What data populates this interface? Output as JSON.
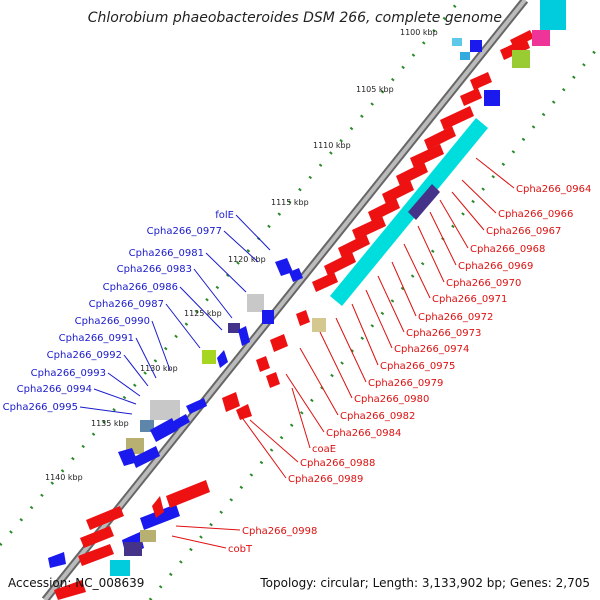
{
  "title": "Chlorobium phaeobacteroides DSM 266, complete genome",
  "footer": {
    "accession_label": "Accession:",
    "accession": "NC_008639",
    "topology_text": "Topology: circular; Length: 3,133,902 bp; Genes: 2,705"
  },
  "scale_ticks": [
    "1100 kbp",
    "1105 kbp",
    "1110 kbp",
    "1115 kbp",
    "1120 kbp",
    "1125 kbp",
    "1130 kbp",
    "1135 kbp",
    "1140 kbp"
  ],
  "genes_left": [
    "folE",
    "Cpha266_0977",
    "Cpha266_0981",
    "Cpha266_0983",
    "Cpha266_0986",
    "Cpha266_0987",
    "Cpha266_0990",
    "Cpha266_0991",
    "Cpha266_0992",
    "Cpha266_0993",
    "Cpha266_0994",
    "Cpha266_0995"
  ],
  "genes_right": [
    "Cpha266_0964",
    "Cpha266_0966",
    "Cpha266_0967",
    "Cpha266_0968",
    "Cpha266_0969",
    "Cpha266_0970",
    "Cpha266_0971",
    "Cpha266_0972",
    "Cpha266_0973",
    "Cpha266_0974",
    "Cpha266_0975",
    "Cpha266_0979",
    "Cpha266_0980",
    "Cpha266_0982",
    "Cpha266_0984",
    "coaE",
    "Cpha266_0988",
    "Cpha266_0989",
    "Cpha266_0998",
    "cobT"
  ],
  "colors": {
    "forward_strand": "#1a1aee",
    "reverse_strand": "#ee1111",
    "tick_dots": "#2a8a2a",
    "backbone": "#888888"
  }
}
